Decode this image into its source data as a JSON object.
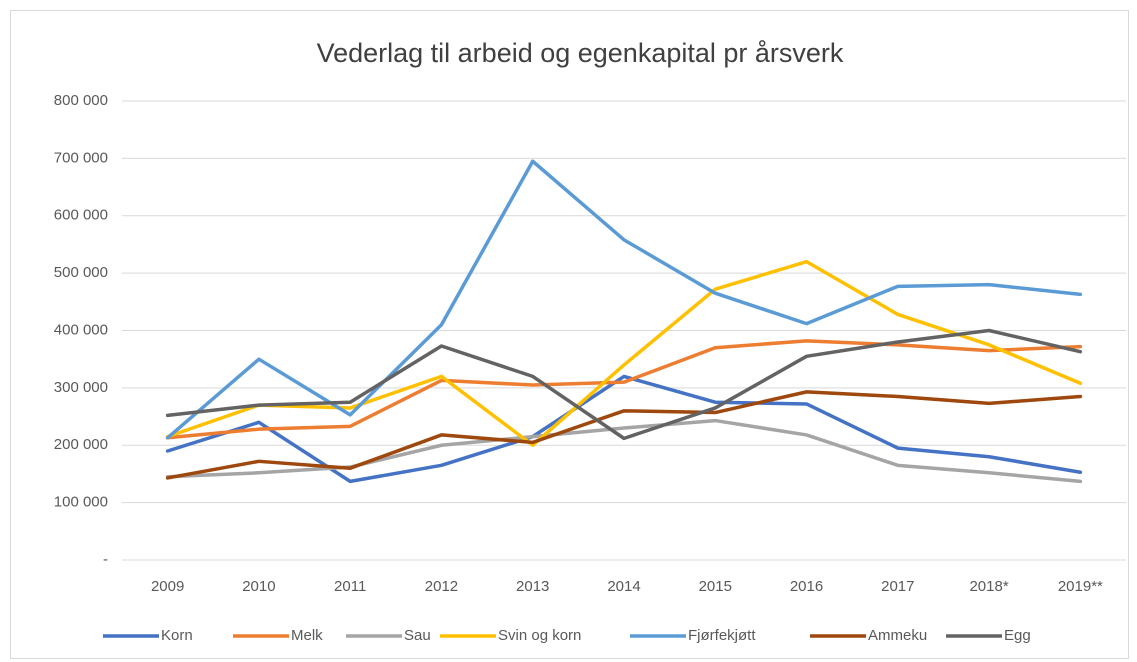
{
  "chart_data": {
    "type": "line",
    "title": "Vederlag til arbeid og egenkapital pr årsverk",
    "categories": [
      "2009",
      "2010",
      "2011",
      "2012",
      "2013",
      "2014",
      "2015",
      "2016",
      "2017",
      "2018*",
      "2019**"
    ],
    "series": [
      {
        "name": "Korn",
        "color": "#4472c4",
        "values": [
          190000,
          240000,
          137000,
          165000,
          215000,
          320000,
          275000,
          272000,
          195000,
          180000,
          153000
        ]
      },
      {
        "name": "Melk",
        "color": "#ed7d31",
        "values": [
          213000,
          228000,
          233000,
          313000,
          305000,
          310000,
          370000,
          382000,
          375000,
          365000,
          372000
        ]
      },
      {
        "name": "Sau",
        "color": "#a5a5a5",
        "values": [
          145000,
          152000,
          162000,
          200000,
          215000,
          230000,
          243000,
          218000,
          165000,
          152000,
          137000
        ]
      },
      {
        "name": "Svin og korn",
        "color": "#ffc000",
        "values": [
          215000,
          270000,
          265000,
          320000,
          200000,
          340000,
          472000,
          520000,
          428000,
          375000,
          308000
        ]
      },
      {
        "name": "Fjørfekjøtt",
        "color": "#5b9bd5",
        "values": [
          213000,
          350000,
          253000,
          410000,
          695000,
          558000,
          465000,
          412000,
          477000,
          480000,
          463000
        ]
      },
      {
        "name": "Ammeku",
        "color": "#9e480e",
        "values": [
          143000,
          172000,
          160000,
          218000,
          205000,
          260000,
          257000,
          293000,
          285000,
          273000,
          285000
        ]
      },
      {
        "name": "Egg",
        "color": "#636363",
        "values": [
          252000,
          270000,
          275000,
          373000,
          320000,
          212000,
          265000,
          355000,
          380000,
          400000,
          363000
        ]
      }
    ],
    "ylim": [
      0,
      800000
    ],
    "yticks": [
      {
        "value": 0,
        "label": "-"
      },
      {
        "value": 100000,
        "label": "100 000"
      },
      {
        "value": 200000,
        "label": "200 000"
      },
      {
        "value": 300000,
        "label": "300 000"
      },
      {
        "value": 400000,
        "label": "400 000"
      },
      {
        "value": 500000,
        "label": "500 000"
      },
      {
        "value": 600000,
        "label": "600 000"
      },
      {
        "value": 700000,
        "label": "700 000"
      },
      {
        "value": 800000,
        "label": "800 000"
      }
    ],
    "grid": true,
    "legend": "bottom"
  }
}
